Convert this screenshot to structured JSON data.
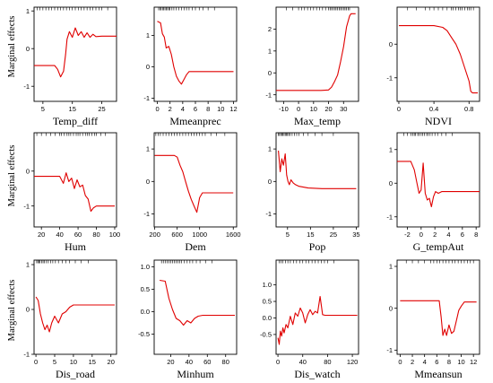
{
  "figure": {
    "y_axis_title": "Marginal effects",
    "line_color": "#e00000",
    "rug_color": "#000000"
  },
  "chart_data": [
    {
      "type": "line",
      "xlabel": "Temp_diff",
      "xlim": [
        2,
        30
      ],
      "ylim": [
        -1.4,
        1.1
      ],
      "xticks": [
        5,
        15,
        25
      ],
      "yticks": [
        -1,
        0,
        1
      ],
      "x": [
        2,
        9,
        10,
        11,
        12,
        12.7,
        13.2,
        14,
        15,
        16,
        17,
        18,
        19,
        20,
        21,
        22,
        23,
        25,
        30
      ],
      "y": [
        -0.45,
        -0.45,
        -0.55,
        -0.75,
        -0.6,
        -0.15,
        0.25,
        0.45,
        0.3,
        0.55,
        0.35,
        0.45,
        0.3,
        0.42,
        0.3,
        0.38,
        0.32,
        0.33,
        0.33
      ],
      "rug": [
        3,
        4,
        5,
        6,
        7,
        8,
        9,
        10,
        11,
        12,
        13,
        14,
        15,
        16,
        17,
        18,
        19,
        20,
        21,
        22,
        23,
        24,
        25,
        27
      ]
    },
    {
      "type": "line",
      "xlabel": "Mmeanprec",
      "xlim": [
        -0.5,
        12.5
      ],
      "ylim": [
        -1.1,
        1.9
      ],
      "xticks": [
        0,
        2,
        4,
        6,
        8,
        10,
        12
      ],
      "yticks": [
        -1,
        0,
        1
      ],
      "x": [
        0,
        0.5,
        0.8,
        1.1,
        1.4,
        1.8,
        2.2,
        2.6,
        3.0,
        3.4,
        3.8,
        4.2,
        4.6,
        5,
        6,
        12
      ],
      "y": [
        1.45,
        1.4,
        1.05,
        0.95,
        0.6,
        0.65,
        0.4,
        0.0,
        -0.3,
        -0.45,
        -0.55,
        -0.4,
        -0.25,
        -0.15,
        -0.15,
        -0.15
      ],
      "rug": [
        0.2,
        0.4,
        0.6,
        0.8,
        1.0,
        1.2,
        1.4,
        1.6,
        1.8,
        2.0,
        2.3,
        2.6,
        3.0,
        3.4,
        3.8,
        4.2,
        4.6,
        5.0,
        5.5,
        6.0,
        6.6,
        7.2,
        8.0,
        9.0
      ]
    },
    {
      "type": "line",
      "xlabel": "Max_temp",
      "xlim": [
        -15,
        40
      ],
      "ylim": [
        -1.3,
        3.0
      ],
      "xticks": [
        -10,
        0,
        10,
        20,
        30
      ],
      "yticks": [
        -1,
        0,
        1,
        2
      ],
      "x": [
        -15,
        15,
        20,
        22,
        24,
        26,
        28,
        30,
        32,
        34,
        35,
        38
      ],
      "y": [
        -0.8,
        -0.8,
        -0.78,
        -0.65,
        -0.4,
        -0.1,
        0.5,
        1.2,
        2.1,
        2.6,
        2.7,
        2.7
      ],
      "rug": [
        -8,
        -4,
        0,
        2,
        4,
        6,
        8,
        10,
        12,
        14,
        16,
        18,
        20,
        21,
        22,
        23,
        24,
        25,
        26,
        27,
        28,
        29,
        30,
        31,
        32,
        33,
        34
      ]
    },
    {
      "type": "line",
      "xlabel": "NDVI",
      "xlim": [
        -0.02,
        0.92
      ],
      "ylim": [
        -1.7,
        1.1
      ],
      "xticks": [
        0.0,
        0.4,
        0.8
      ],
      "yticks": [
        -1,
        0
      ],
      "x": [
        0,
        0.4,
        0.5,
        0.55,
        0.6,
        0.65,
        0.7,
        0.75,
        0.8,
        0.82,
        0.84,
        0.9
      ],
      "y": [
        0.55,
        0.55,
        0.5,
        0.4,
        0.2,
        0.0,
        -0.3,
        -0.7,
        -1.1,
        -1.4,
        -1.45,
        -1.45
      ],
      "rug": [
        0.1,
        0.2,
        0.3,
        0.35,
        0.4,
        0.45,
        0.5,
        0.55,
        0.6,
        0.62,
        0.65,
        0.68,
        0.7,
        0.72,
        0.75,
        0.78,
        0.8,
        0.82,
        0.85
      ]
    },
    {
      "type": "line",
      "xlabel": "Hum",
      "xlim": [
        12,
        102
      ],
      "ylim": [
        -1.6,
        1.1
      ],
      "xticks": [
        20,
        40,
        60,
        80,
        100
      ],
      "yticks": [
        -1,
        0
      ],
      "x": [
        12,
        40,
        44,
        47,
        50,
        53,
        56,
        59,
        62,
        65,
        68,
        71,
        74,
        77,
        80,
        84,
        100
      ],
      "y": [
        -0.15,
        -0.15,
        -0.35,
        -0.05,
        -0.3,
        -0.2,
        -0.5,
        -0.25,
        -0.45,
        -0.4,
        -0.7,
        -0.8,
        -1.15,
        -1.05,
        -1.0,
        -1.0,
        -1.0
      ],
      "rug": [
        15,
        20,
        25,
        30,
        35,
        40,
        42,
        45,
        48,
        50,
        52,
        55,
        58,
        60,
        62,
        65,
        68,
        70,
        72,
        75,
        78,
        80,
        85,
        90
      ]
    },
    {
      "type": "line",
      "xlabel": "Dem",
      "xlim": [
        190,
        1660
      ],
      "ylim": [
        -1.4,
        1.5
      ],
      "xticks": [
        200,
        600,
        1000,
        1600
      ],
      "yticks": [
        -1,
        0,
        1
      ],
      "x": [
        200,
        550,
        600,
        650,
        700,
        750,
        800,
        850,
        900,
        950,
        1000,
        1050,
        1100,
        1600
      ],
      "y": [
        0.8,
        0.8,
        0.75,
        0.5,
        0.3,
        0.0,
        -0.3,
        -0.55,
        -0.75,
        -0.95,
        -0.5,
        -0.35,
        -0.35,
        -0.35
      ],
      "rug": [
        220,
        260,
        300,
        350,
        400,
        450,
        500,
        550,
        600,
        650,
        700,
        750,
        800,
        850,
        900,
        950,
        1000,
        1050,
        1100,
        1200,
        1300,
        1450
      ]
    },
    {
      "type": "line",
      "xlabel": "Pop",
      "xlim": [
        0,
        36
      ],
      "ylim": [
        -1.4,
        1.5
      ],
      "xticks": [
        5,
        15,
        25,
        35
      ],
      "yticks": [
        -1,
        0,
        1
      ],
      "x": [
        1,
        1.8,
        2.5,
        3.2,
        4,
        4.6,
        5.2,
        5.8,
        6.5,
        7.5,
        8.5,
        10,
        14,
        20,
        35
      ],
      "y": [
        0.95,
        0.3,
        0.7,
        0.5,
        0.85,
        0.2,
        0.0,
        -0.1,
        0.05,
        -0.05,
        -0.1,
        -0.15,
        -0.2,
        -0.22,
        -0.22
      ],
      "rug": [
        1,
        1.5,
        2,
        2.5,
        3,
        3.5,
        4,
        4.5,
        5,
        5.5,
        6,
        7,
        8,
        9,
        10,
        12,
        14,
        17,
        20,
        25
      ]
    },
    {
      "type": "line",
      "xlabel": "G_tempAut",
      "xlim": [
        -3.5,
        8.5
      ],
      "ylim": [
        -1.3,
        1.5
      ],
      "xticks": [
        -2,
        0,
        2,
        4,
        6,
        8
      ],
      "yticks": [
        -1,
        0,
        1
      ],
      "x": [
        -3.5,
        -1.5,
        -1.0,
        -0.6,
        -0.3,
        0.0,
        0.3,
        0.6,
        0.9,
        1.2,
        1.5,
        1.8,
        2.1,
        2.5,
        3.0,
        3.5,
        8.5
      ],
      "y": [
        0.65,
        0.65,
        0.4,
        0.0,
        -0.3,
        -0.2,
        0.6,
        -0.3,
        -0.5,
        -0.45,
        -0.7,
        -0.4,
        -0.25,
        -0.3,
        -0.25,
        -0.25,
        -0.25
      ],
      "rug": [
        -2.5,
        -2,
        -1.5,
        -1.2,
        -1,
        -0.8,
        -0.5,
        -0.3,
        0,
        0.2,
        0.5,
        0.8,
        1,
        1.3,
        1.6,
        2,
        2.4,
        3,
        3.6,
        4.5
      ]
    },
    {
      "type": "line",
      "xlabel": "Dis_road",
      "xlim": [
        -0.5,
        21.5
      ],
      "ylim": [
        -1.0,
        1.1
      ],
      "xticks": [
        0,
        5,
        10,
        15,
        20
      ],
      "yticks": [
        -1,
        0,
        1
      ],
      "x": [
        0,
        0.6,
        1.2,
        1.8,
        2.4,
        3.0,
        3.6,
        4.2,
        5,
        6,
        7,
        8,
        9,
        10,
        21
      ],
      "y": [
        0.28,
        0.2,
        -0.1,
        -0.3,
        -0.45,
        -0.35,
        -0.5,
        -0.3,
        -0.15,
        -0.3,
        -0.1,
        -0.05,
        0.05,
        0.1,
        0.1
      ],
      "rug": [
        0.2,
        0.5,
        0.8,
        1.1,
        1.5,
        1.9,
        2.3,
        2.8,
        3.3,
        3.9,
        4.5,
        5.2,
        6,
        7,
        8,
        9,
        10.5,
        12,
        14
      ]
    },
    {
      "type": "line",
      "xlabel": "Minhum",
      "xlim": [
        2,
        92
      ],
      "ylim": [
        -0.95,
        1.15
      ],
      "xticks": [
        20,
        40,
        60,
        80
      ],
      "yticks": [
        -0.5,
        0.0,
        0.5,
        1.0
      ],
      "x": [
        8,
        14,
        18,
        22,
        26,
        30,
        34,
        38,
        42,
        46,
        50,
        55,
        90
      ],
      "y": [
        0.7,
        0.68,
        0.3,
        0.05,
        -0.15,
        -0.2,
        -0.3,
        -0.2,
        -0.25,
        -0.15,
        -0.1,
        -0.08,
        -0.08
      ],
      "rug": [
        10,
        12,
        14,
        16,
        18,
        20,
        22,
        24,
        26,
        28,
        30,
        32,
        35,
        38,
        41,
        44,
        48,
        52,
        58,
        65
      ]
    },
    {
      "type": "line",
      "xlabel": "Dis_watch",
      "xlim": [
        -3,
        130
      ],
      "ylim": [
        -1.1,
        1.75
      ],
      "xticks": [
        0,
        40,
        80,
        120
      ],
      "yticks": [
        -0.5,
        0.0,
        0.5,
        1.0
      ],
      "x": [
        0,
        2,
        4,
        6,
        8,
        10,
        13,
        16,
        20,
        24,
        28,
        32,
        36,
        40,
        44,
        48,
        52,
        56,
        60,
        64,
        68,
        72,
        76,
        80,
        128
      ],
      "y": [
        -0.6,
        -0.8,
        -0.4,
        -0.55,
        -0.3,
        -0.45,
        -0.2,
        -0.3,
        0.05,
        -0.2,
        0.15,
        0.05,
        0.3,
        0.15,
        -0.15,
        0.1,
        0.25,
        0.1,
        0.2,
        0.15,
        0.65,
        0.1,
        0.08,
        0.08,
        0.08
      ],
      "rug": [
        2,
        5,
        8,
        12,
        16,
        20,
        25,
        30,
        35,
        40,
        45,
        50,
        55,
        60,
        65,
        70,
        75,
        80,
        90
      ]
    },
    {
      "type": "line",
      "xlabel": "Mmeansun",
      "xlim": [
        -0.5,
        13
      ],
      "ylim": [
        -1.1,
        1.15
      ],
      "xticks": [
        0,
        2,
        4,
        6,
        8,
        10,
        12
      ],
      "yticks": [
        -1,
        0,
        1
      ],
      "x": [
        0,
        6.4,
        6.7,
        7.0,
        7.3,
        7.6,
        8.0,
        8.4,
        8.8,
        9.2,
        9.6,
        10.0,
        10.5,
        11,
        12.5
      ],
      "y": [
        0.18,
        0.18,
        -0.2,
        -0.65,
        -0.5,
        -0.65,
        -0.4,
        -0.6,
        -0.55,
        -0.3,
        -0.05,
        0.05,
        0.15,
        0.15,
        0.15
      ],
      "rug": [
        1,
        2,
        3,
        4,
        5,
        5.5,
        6,
        6.5,
        7,
        7.5,
        8,
        8.5,
        9,
        9.5,
        10,
        10.5,
        11,
        11.5,
        12
      ]
    }
  ]
}
